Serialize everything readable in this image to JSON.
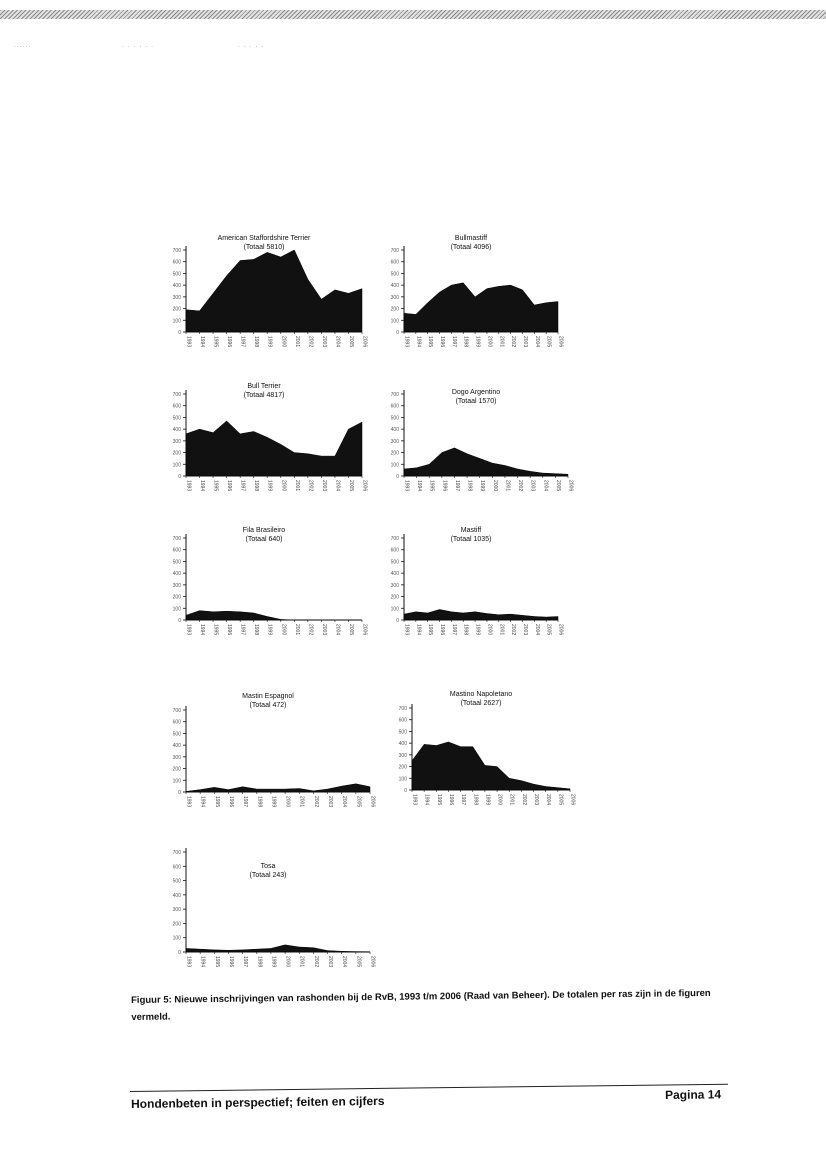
{
  "charts": [
    {
      "id": "ast",
      "title": "American Staffordshire Terrier",
      "total": "(Totaal 5810)",
      "ytick_labels": [
        "700",
        "600",
        "500",
        "400",
        "300",
        "200",
        "100",
        "0"
      ],
      "chart_data": {
        "type": "area",
        "x": [
          1993,
          1994,
          1995,
          1996,
          1997,
          1998,
          1999,
          2000,
          2001,
          2002,
          2003,
          2004,
          2005,
          2006
        ],
        "values": [
          190,
          180,
          330,
          480,
          610,
          620,
          680,
          640,
          700,
          450,
          280,
          360,
          330,
          370
        ],
        "ylim": [
          0,
          700
        ]
      }
    },
    {
      "id": "bullmastiff",
      "title": "Bullmastiff",
      "total": "(Totaal 4096)",
      "ytick_labels": [
        "700",
        "600",
        "500",
        "400",
        "300",
        "200",
        "100",
        "0"
      ],
      "chart_data": {
        "type": "area",
        "x": [
          1993,
          1994,
          1995,
          1996,
          1997,
          1998,
          1999,
          2000,
          2001,
          2002,
          2003,
          2004,
          2005,
          2006
        ],
        "values": [
          160,
          150,
          250,
          340,
          400,
          420,
          300,
          370,
          390,
          400,
          360,
          230,
          250,
          260
        ],
        "ylim": [
          0,
          700
        ]
      }
    },
    {
      "id": "bullterrier",
      "title": "Bull Terrier",
      "total": "(Totaal 4817)",
      "ytick_labels": [
        "700",
        "600",
        "500",
        "400",
        "300",
        "200",
        "100",
        "0"
      ],
      "chart_data": {
        "type": "area",
        "x": [
          1993,
          1994,
          1995,
          1996,
          1997,
          1998,
          1999,
          2000,
          2001,
          2002,
          2003,
          2004,
          2005,
          2006
        ],
        "values": [
          360,
          400,
          370,
          470,
          360,
          380,
          330,
          270,
          200,
          190,
          170,
          170,
          400,
          460
        ],
        "ylim": [
          0,
          700
        ]
      }
    },
    {
      "id": "dogo",
      "title": "Dogo Argentino",
      "total": "(Totaal 1570)",
      "ytick_labels": [
        "700",
        "600",
        "500",
        "400",
        "300",
        "200",
        "100",
        "0"
      ],
      "chart_data": {
        "type": "area",
        "x": [
          1993,
          1994,
          1995,
          1996,
          1997,
          1998,
          1999,
          2000,
          2001,
          2002,
          2003,
          2004,
          2005,
          2006
        ],
        "values": [
          60,
          70,
          100,
          200,
          240,
          190,
          150,
          110,
          90,
          60,
          40,
          25,
          20,
          15
        ],
        "ylim": [
          0,
          700
        ]
      }
    },
    {
      "id": "fila",
      "title": "Fila Brasileiro",
      "total": "(Totaal 640)",
      "ytick_labels": [
        "700",
        "600",
        "500",
        "400",
        "300",
        "200",
        "100",
        "0"
      ],
      "chart_data": {
        "type": "area",
        "x": [
          1993,
          1994,
          1995,
          1996,
          1997,
          1998,
          1999,
          2000,
          2001,
          2002,
          2003,
          2004,
          2005,
          2006
        ],
        "values": [
          40,
          80,
          70,
          75,
          70,
          60,
          30,
          5,
          0,
          0,
          0,
          0,
          0,
          0
        ],
        "ylim": [
          0,
          700
        ]
      }
    },
    {
      "id": "mastiff",
      "title": "Mastiff",
      "total": "(Totaal 1035)",
      "ytick_labels": [
        "700",
        "600",
        "500",
        "400",
        "300",
        "200",
        "100",
        "0"
      ],
      "chart_data": {
        "type": "area",
        "x": [
          1993,
          1994,
          1995,
          1996,
          1997,
          1998,
          1999,
          2000,
          2001,
          2002,
          2003,
          2004,
          2005,
          2006
        ],
        "values": [
          50,
          70,
          60,
          90,
          70,
          60,
          70,
          55,
          45,
          50,
          40,
          30,
          25,
          30
        ],
        "ylim": [
          0,
          700
        ]
      }
    },
    {
      "id": "mastin-es",
      "title": "Mastin Espagnol",
      "total": "(Totaal 472)",
      "ytick_labels": [
        "700",
        "600",
        "500",
        "400",
        "300",
        "200",
        "100",
        "0"
      ],
      "chart_data": {
        "type": "area",
        "x": [
          1993,
          1994,
          1995,
          1996,
          1997,
          1998,
          1999,
          2000,
          2001,
          2002,
          2003,
          2004,
          2005,
          2006
        ],
        "values": [
          5,
          20,
          40,
          20,
          45,
          25,
          25,
          25,
          30,
          10,
          25,
          50,
          70,
          45
        ],
        "ylim": [
          0,
          700
        ]
      }
    },
    {
      "id": "mastino",
      "title": "Mastino Napoletano",
      "total": "(Totaal 2627)",
      "ytick_labels": [
        "700",
        "600",
        "500",
        "400",
        "300",
        "200",
        "100",
        "0"
      ],
      "chart_data": {
        "type": "area",
        "x": [
          1993,
          1994,
          1995,
          1996,
          1997,
          1998,
          1999,
          2000,
          2001,
          2002,
          2003,
          2004,
          2005,
          2006
        ],
        "values": [
          250,
          390,
          380,
          410,
          370,
          370,
          210,
          200,
          100,
          80,
          50,
          30,
          20,
          10
        ],
        "ylim": [
          0,
          700
        ]
      }
    },
    {
      "id": "tosa",
      "title": "Tosa",
      "total": "(Totaal 243)",
      "ytick_labels": [
        "700",
        "600",
        "500",
        "400",
        "300",
        "200",
        "100",
        "0"
      ],
      "chart_data": {
        "type": "area",
        "x": [
          1993,
          1994,
          1995,
          1996,
          1997,
          1998,
          1999,
          2000,
          2001,
          2002,
          2003,
          2004,
          2005,
          2006
        ],
        "values": [
          25,
          20,
          15,
          12,
          15,
          20,
          25,
          50,
          35,
          30,
          10,
          5,
          3,
          2
        ],
        "ylim": [
          0,
          700
        ]
      }
    }
  ],
  "caption": "Figuur 5: Nieuwe inschrijvingen van rashonden bij de RvB, 1993 t/m 2006 (Raad van Beheer). De totalen per ras zijn in de figuren vermeld.",
  "footer": {
    "left": "Hondenbeten in perspectief; feiten en cijfers",
    "right": "Pagina 14"
  }
}
